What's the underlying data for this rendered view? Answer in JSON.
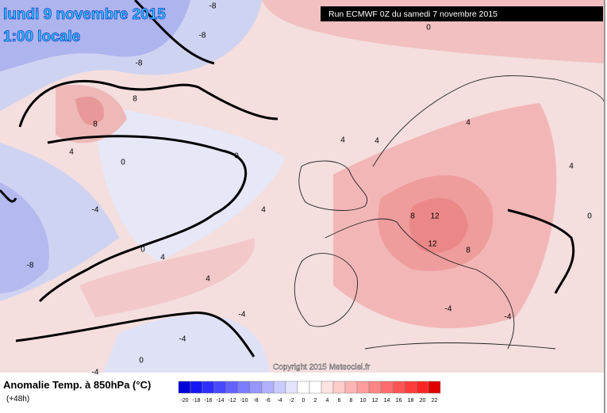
{
  "header": {
    "title": "lundi 9 novembre 2015",
    "subtitle": "1:00 locale",
    "run": "Run ECMWF 0Z du samedi 7 novembre 2015"
  },
  "copyright": "Copyright 2015 Meteociel.fr",
  "legend": {
    "title": "Anomalie Temp. à 850hPa (°C)",
    "lead": "(+48h)",
    "values": [
      -20,
      -18,
      -16,
      -14,
      -12,
      -10,
      -8,
      -6,
      -4,
      -2,
      0,
      2,
      4,
      6,
      8,
      10,
      12,
      14,
      16,
      18,
      20,
      22
    ],
    "colors": [
      "#0000d8",
      "#1515f5",
      "#2e2eff",
      "#4848ff",
      "#6262ff",
      "#7c7cff",
      "#9696ff",
      "#b0b0ff",
      "#cacaff",
      "#e4e4ff",
      "#ffffff",
      "#ffffff",
      "#ffe2e2",
      "#ffcccc",
      "#ffb4b4",
      "#ff9c9c",
      "#ff8484",
      "#ff6c6c",
      "#ff5454",
      "#ff3c3c",
      "#ff2424",
      "#e00000"
    ]
  },
  "contour_labels": [
    -8,
    -8,
    -8,
    -4,
    0,
    8,
    8,
    4,
    0,
    0,
    4,
    -4,
    -4,
    0,
    4,
    -4,
    -8,
    4,
    8,
    12,
    12,
    8,
    0,
    4,
    4,
    4,
    -4,
    -4,
    0,
    4
  ]
}
